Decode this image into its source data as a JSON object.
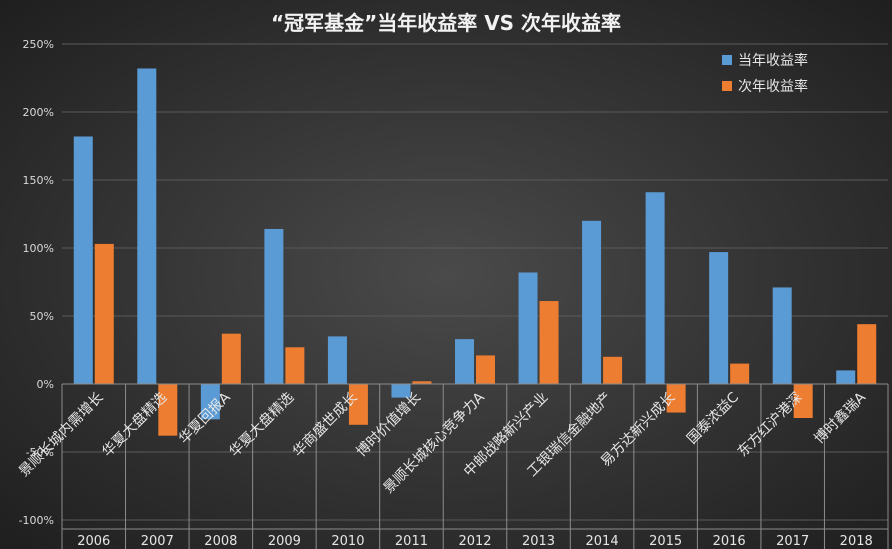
{
  "chart_data": {
    "type": "bar",
    "title": "“冠军基金”当年收益率  VS  次年收益率",
    "xlabel": "",
    "ylabel": "",
    "years": [
      "2006",
      "2007",
      "2008",
      "2009",
      "2010",
      "2011",
      "2012",
      "2013",
      "2014",
      "2015",
      "2016",
      "2017",
      "2018"
    ],
    "fund_names": [
      "景顺长城内需增长",
      "华夏大盘精选",
      "华夏回报A",
      "华夏大盘精选",
      "华商盛世成长",
      "博时价值增长",
      "景顺长城核心竞争力A",
      "中邮战略新兴产业",
      "工银瑞信金融地产",
      "易方达新兴成长",
      "国泰浓益C",
      "东方红沪港深",
      "博时鑫瑞A"
    ],
    "series": [
      {
        "name": "当年收益率",
        "color": "#5b9bd5",
        "values": [
          182,
          232,
          -26,
          114,
          35,
          -10,
          33,
          82,
          120,
          141,
          97,
          71,
          10
        ]
      },
      {
        "name": "次年收益率",
        "color": "#ed7d31",
        "values": [
          103,
          -38,
          37,
          27,
          -30,
          2,
          21,
          61,
          20,
          -21,
          15,
          -25,
          44
        ]
      }
    ],
    "ylim": [
      -100,
      250
    ],
    "yticks": [
      -100,
      -50,
      0,
      50,
      100,
      150,
      200,
      250
    ],
    "ytick_labels": [
      "-100%",
      "-50%",
      "0%",
      "50%",
      "100%",
      "150%",
      "200%",
      "250%"
    ],
    "grid": true,
    "legend_position": "top-right"
  }
}
